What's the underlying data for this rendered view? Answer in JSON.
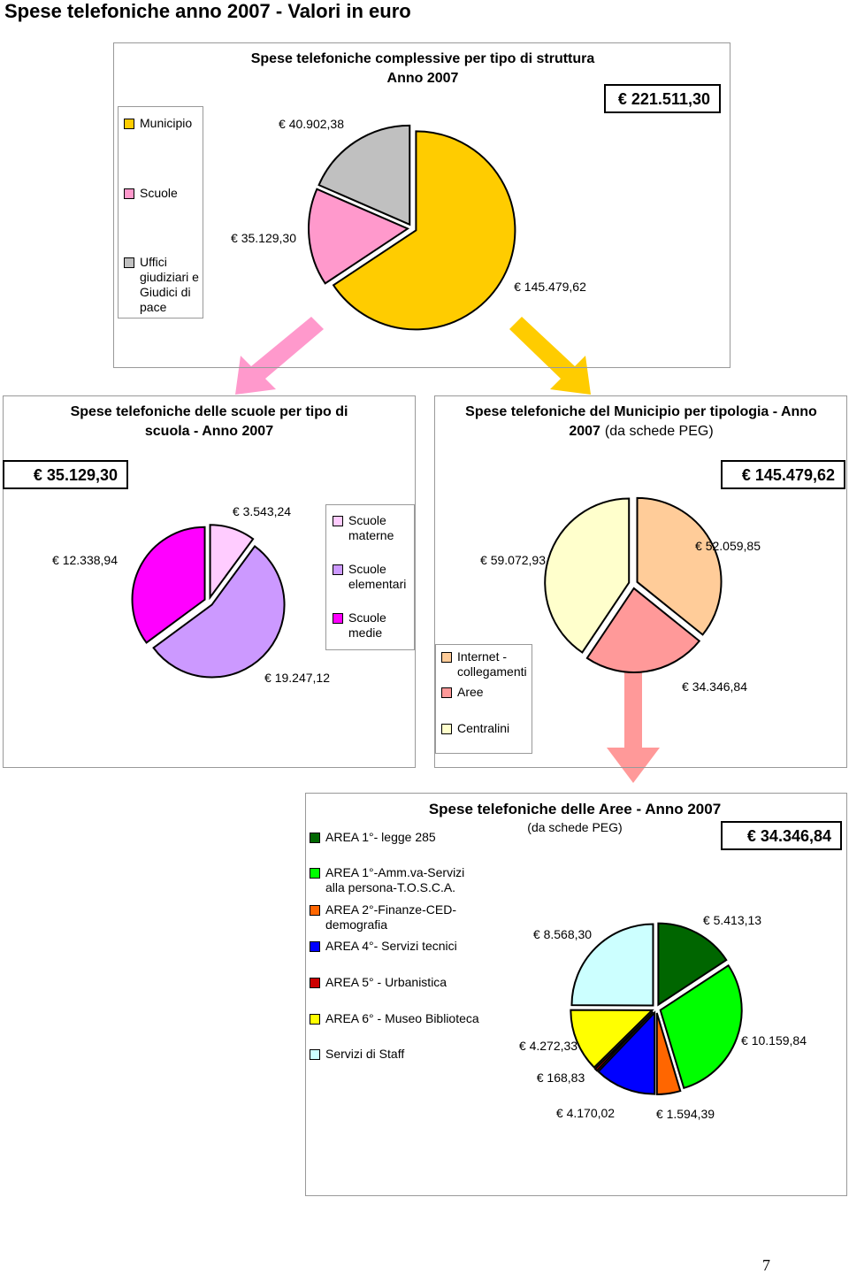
{
  "heading": "Spese telefoniche anno 2007 - Valori in euro",
  "page_number": "7",
  "chart_data": [
    {
      "type": "pie",
      "title": "Spese telefoniche complessive per tipo di struttura",
      "subtitle": "Anno 2007",
      "total_label": "€ 221.511,30",
      "categories": [
        "Municipio",
        "Scuole",
        "Uffici giudiziari e Giudici di pace"
      ],
      "values": [
        145479.62,
        35129.3,
        40902.38
      ],
      "value_labels": [
        "€ 145.479,62",
        "€ 35.129,30",
        "€ 40.902,38"
      ],
      "colors": [
        "#ffcc00",
        "#ff99cc",
        "#c0c0c0"
      ]
    },
    {
      "type": "pie",
      "title": "Spese telefoniche delle scuole per tipo di scuola - Anno 2007",
      "total_label": "€ 35.129,30",
      "categories": [
        "Scuole materne",
        "Scuole elementari",
        "Scuole medie"
      ],
      "values": [
        3543.24,
        19247.12,
        12338.94
      ],
      "value_labels": [
        "€ 3.543,24",
        "€ 19.247,12",
        "€ 12.338,94"
      ],
      "colors": [
        "#ffccff",
        "#cc99ff",
        "#ff00ff"
      ]
    },
    {
      "type": "pie",
      "title": "Spese telefoniche del Municipio per tipologia - Anno 2007",
      "subtitle": "(da schede PEG)",
      "total_label": "€ 145.479,62",
      "categories": [
        "Internet - collegamenti",
        "Aree",
        "Centralini"
      ],
      "values": [
        52059.85,
        34346.84,
        59072.93
      ],
      "value_labels": [
        "€ 52.059,85",
        "€ 34.346,84",
        "€ 59.072,93"
      ],
      "colors": [
        "#ffcc99",
        "#ff9999",
        "#ffffcc"
      ]
    },
    {
      "type": "pie",
      "title": "Spese telefoniche delle Aree - Anno 2007",
      "subtitle": "(da schede PEG)",
      "total_label": "€ 34.346,84",
      "categories": [
        "AREA 1°- legge 285",
        "AREA 1°-Amm.va-Servizi alla persona-T.O.S.C.A.",
        "AREA 2°-Finanze-CED-demografia",
        "AREA 4°- Servizi tecnici",
        "AREA 5° - Urbanistica",
        "AREA 6° - Museo Biblioteca",
        "Servizi di Staff"
      ],
      "values": [
        5413.13,
        10159.84,
        1594.39,
        4170.02,
        168.83,
        4272.33,
        8568.3
      ],
      "value_labels": [
        "€ 5.413,13",
        "€ 10.159,84",
        "€ 1.594,39",
        "€ 4.170,02",
        "€ 168,83",
        "€ 4.272,33",
        "€ 8.568,30"
      ],
      "colors": [
        "#006600",
        "#00ff00",
        "#ff6600",
        "#0000ff",
        "#cc0000",
        "#ffff00",
        "#ccffff"
      ]
    }
  ]
}
